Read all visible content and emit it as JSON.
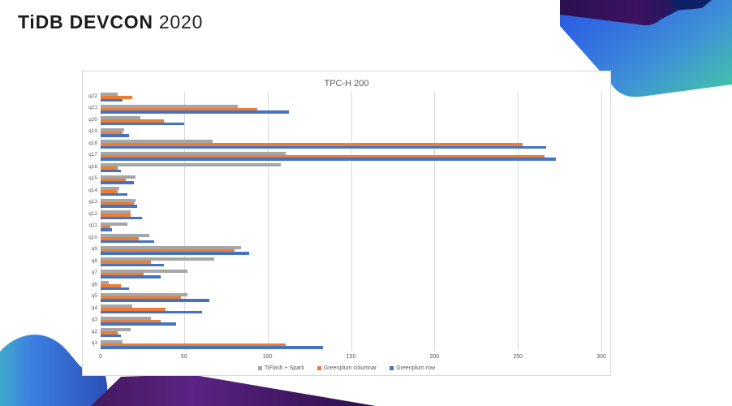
{
  "slide": {
    "title_bold": "TiDB DEVCON",
    "title_year": "2020"
  },
  "chart": {
    "title": "TPC-H 200"
  },
  "chart_data": {
    "type": "bar",
    "orientation": "horizontal",
    "title": "TPC-H 200",
    "categories": [
      "q1",
      "q2",
      "q3",
      "q4",
      "q5",
      "q6",
      "q7",
      "q8",
      "q9",
      "q10",
      "q11",
      "q12",
      "q13",
      "q14",
      "q15",
      "q16",
      "q17",
      "q18",
      "q19",
      "q20",
      "q21",
      "q22"
    ],
    "category_axis_note": "q22 rendered at top, q1 at bottom",
    "series": [
      {
        "name": "TiFlash + Spark",
        "color": "#A6A6A6",
        "values": [
          13,
          18,
          30,
          19,
          52,
          5,
          52,
          68,
          84,
          29,
          16,
          18,
          21,
          11,
          21,
          108,
          111,
          67,
          14,
          24,
          82,
          10
        ]
      },
      {
        "name": "Greenplum columnar",
        "color": "#ED7D31",
        "values": [
          111,
          10,
          36,
          39,
          48,
          12,
          26,
          30,
          80,
          23,
          6,
          18,
          20,
          10,
          15,
          10,
          266,
          253,
          13,
          38,
          94,
          19
        ]
      },
      {
        "name": "Greenplum row",
        "color": "#4472C4",
        "values": [
          133,
          12,
          45,
          61,
          65,
          17,
          36,
          38,
          89,
          32,
          7,
          25,
          22,
          16,
          20,
          12,
          273,
          267,
          17,
          50,
          113,
          13
        ]
      }
    ],
    "xlabel": "",
    "ylabel": "",
    "xlim": [
      0,
      300
    ],
    "xticks": [
      0,
      50,
      100,
      150,
      200,
      250,
      300
    ],
    "grid": "vertical",
    "legend_position": "bottom",
    "gridline_color": "#d9d9d9",
    "title_color": "#595959"
  }
}
